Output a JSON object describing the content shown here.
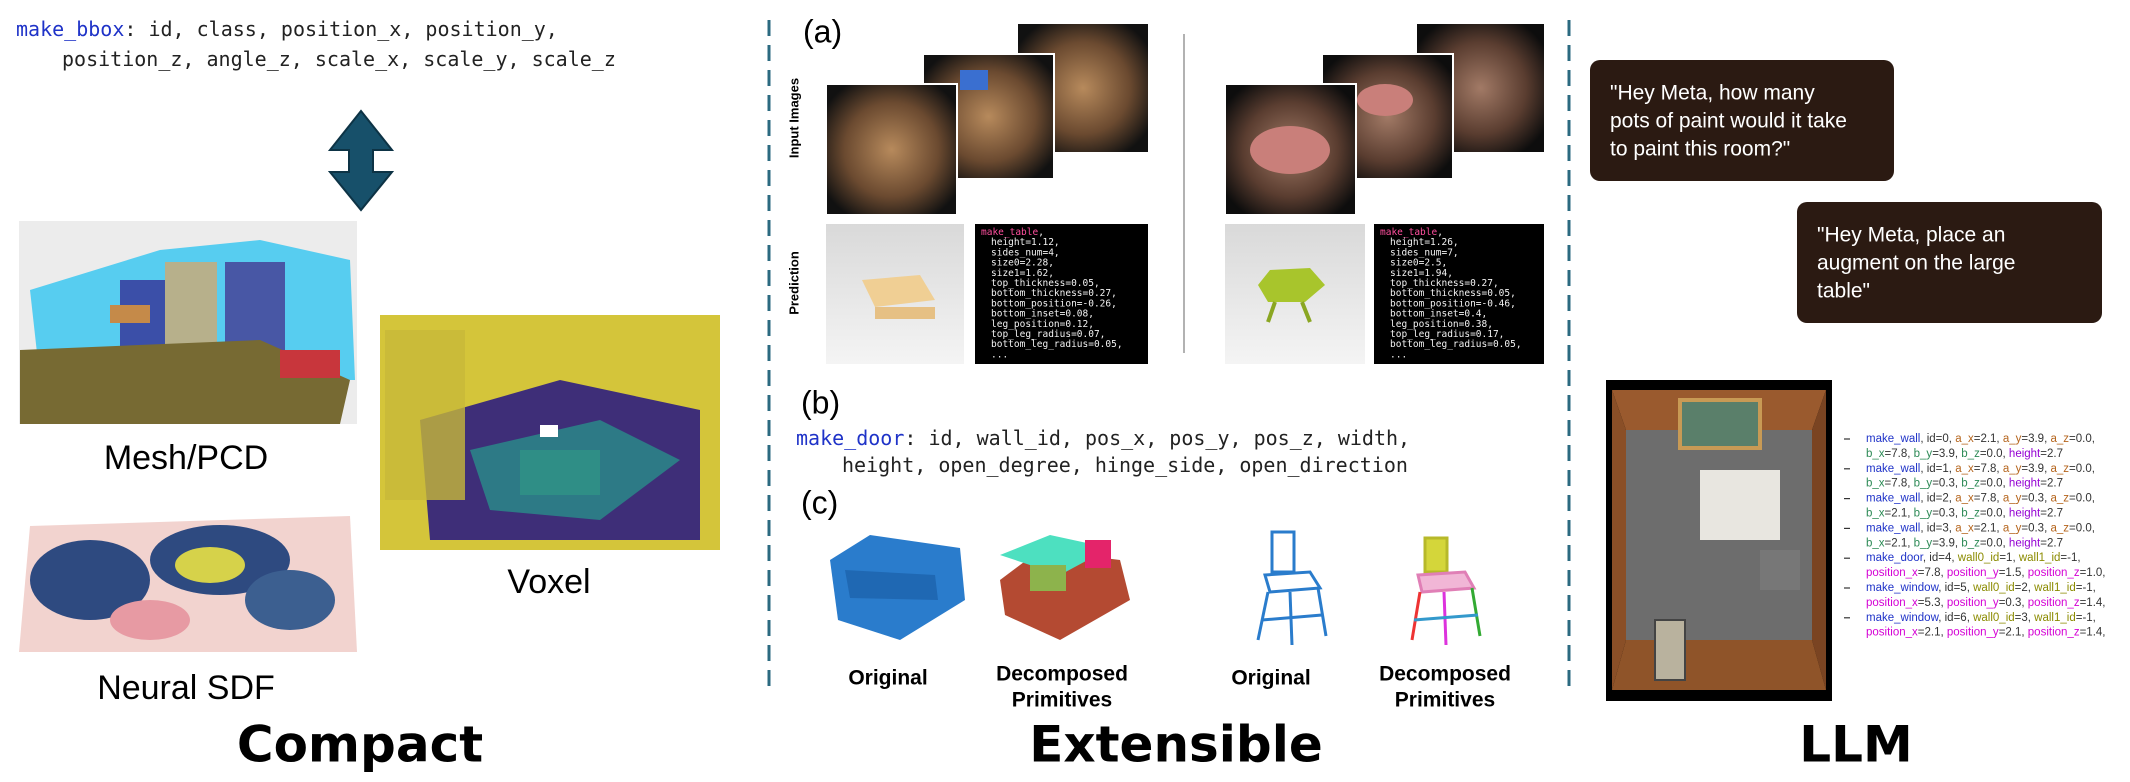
{
  "left": {
    "bbox_code": [
      "make_bbox: id, class, position_x, position_y,",
      "position_z, angle_z, scale_x, scale_y, scale_z"
    ],
    "mesh_label": "Mesh/PCD",
    "voxel_label": "Voxel",
    "sdf_label": "Neural SDF",
    "title": "Compact"
  },
  "middle": {
    "a_label": "(a)",
    "input_label": "Input Images",
    "prediction_label": "Prediction",
    "predictions": [
      [
        "make_table,",
        "height=1.12,",
        "sides_num=4,",
        "size0=2.28,",
        "size1=1.62,",
        "top_thickness=0.05,",
        "bottom_thickness=0.27,",
        "bottom_position=-0.26,",
        "bottom_inset=0.08,",
        "leg_position=0.12,",
        "top_leg_radius=0.07,",
        "bottom_leg_radius=0.05,",
        "..."
      ],
      [
        "make_table,",
        "height=1.26,",
        "sides_num=7,",
        "size0=2.5,",
        "size1=1.94,",
        "top_thickness=0.27,",
        "bottom_thickness=0.05,",
        "bottom_position=-0.46,",
        "bottom_inset=0.4,",
        "leg_position=0.38,",
        "top_leg_radius=0.17,",
        "bottom_leg_radius=0.05,",
        "..."
      ]
    ],
    "b_label": "(b)",
    "door_code": [
      "make_door: id, wall_id, pos_x, pos_y, pos_z, width,",
      "height, open_degree, hinge_side, open_direction"
    ],
    "c_label": "(c)",
    "c_captions": [
      [
        "Original"
      ],
      [
        "Decomposed",
        "Primitives"
      ],
      [
        "Original"
      ],
      [
        "Decomposed",
        "Primitives"
      ]
    ],
    "title": "Extensible"
  },
  "right": {
    "bubbles": [
      [
        "\"Hey Meta, how many",
        "pots of paint would it take",
        "to paint this room?\""
      ],
      [
        "\"Hey Meta, place an",
        "augment on the large",
        "table\""
      ]
    ],
    "commands": [
      [
        "make_wall, id=0, a_x=2.1, a_y=3.9, a_z=0.0,",
        "b_x=7.8, b_y=3.9, b_z=0.0, height=2.7"
      ],
      [
        "make_wall, id=1, a_x=7.8, a_y=3.9, a_z=0.0,",
        "b_x=7.8, b_y=0.3, b_z=0.0, height=2.7"
      ],
      [
        "make_wall, id=2, a_x=7.8, a_y=0.3, a_z=0.0,",
        "b_x=2.1, b_y=0.3, b_z=0.0, height=2.7"
      ],
      [
        "make_wall, id=3, a_x=2.1, a_y=0.3, a_z=0.0,",
        "b_x=2.1, b_y=3.9, b_z=0.0, height=2.7"
      ],
      [
        "make_door, id=4, wall0_id=1, wall1_id=-1,",
        "position_x=7.8, position_y=1.5, position_z=1.0,"
      ],
      [
        "make_window, id=5, wall0_id=2, wall1_id=-1,",
        "position_x=5.3, position_y=0.3, position_z=1.4,"
      ],
      [
        "make_window, id=6, wall0_id=3, wall1_id=-1,",
        "position_x=2.1, position_y=2.1, position_z=1.4,"
      ]
    ],
    "title": "LLM"
  }
}
